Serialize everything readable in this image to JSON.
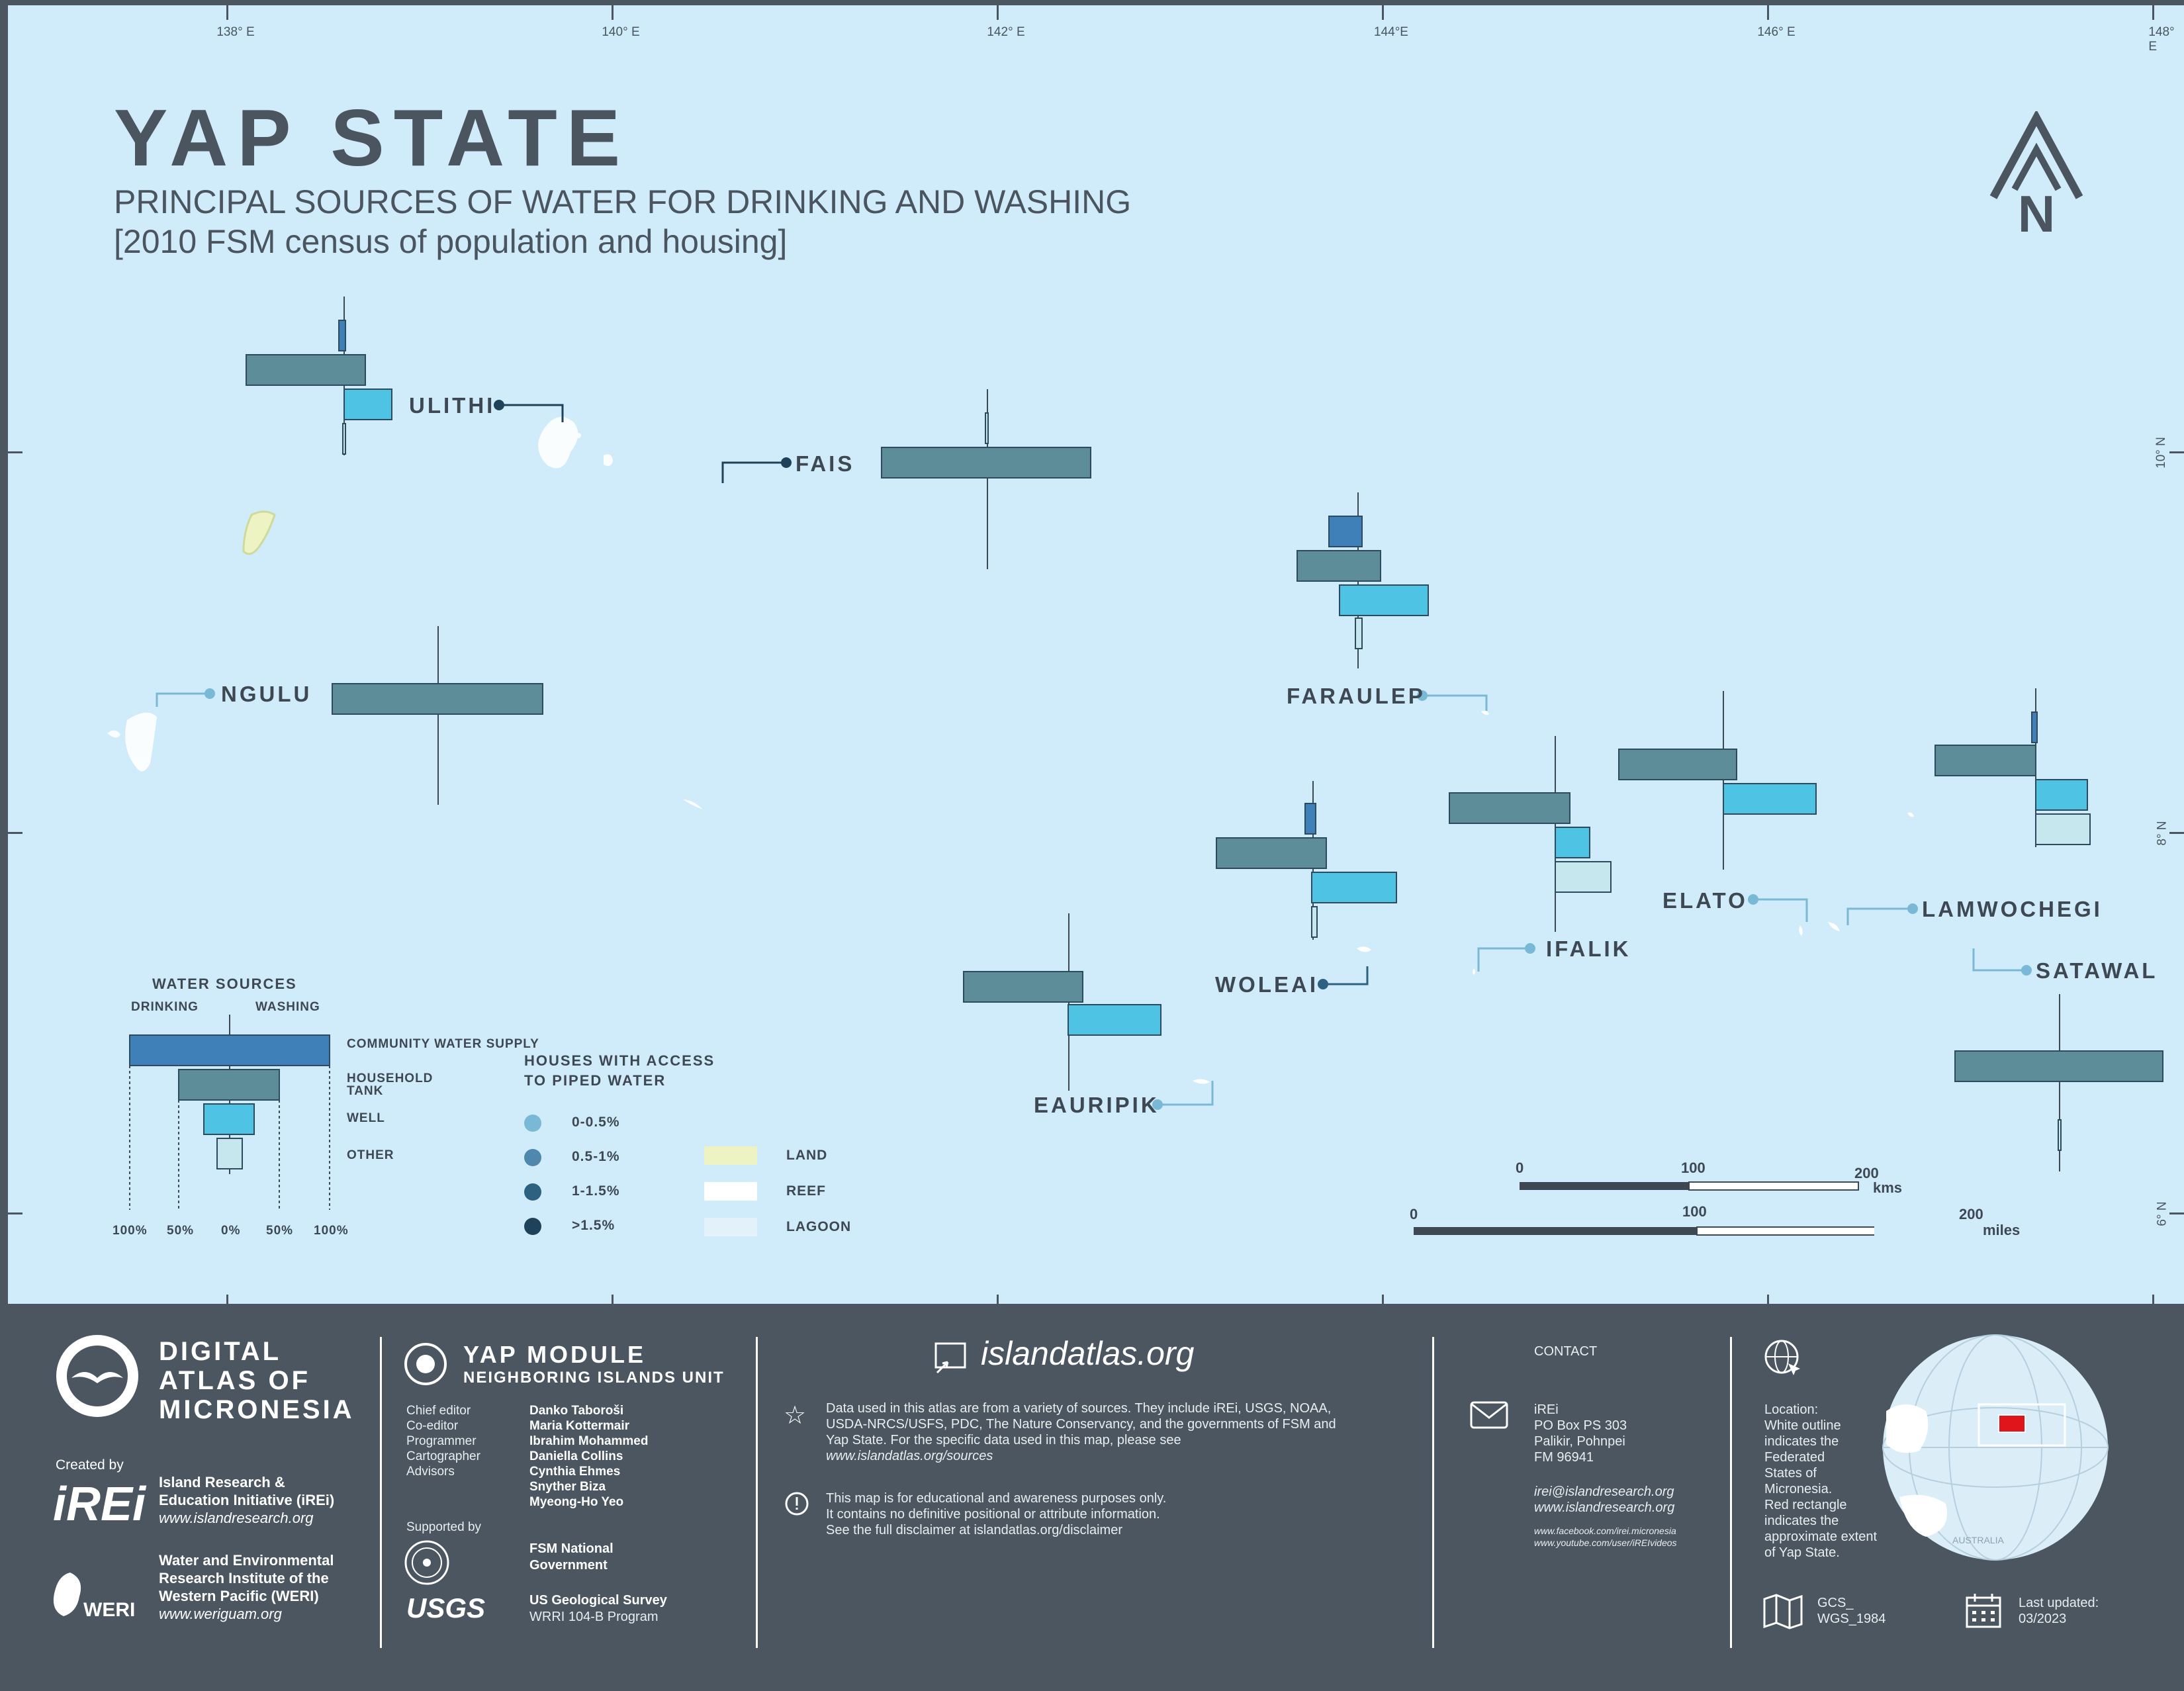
{
  "title": "YAP STATE",
  "subtitle": "PRINCIPAL SOURCES OF WATER FOR DRINKING AND WASHING",
  "subtitle2": "[2010 FSM census of population and housing]",
  "north_label": "N",
  "longitudes": [
    "138° E",
    "140° E",
    "142° E",
    "144°E",
    "146° E",
    "148° E"
  ],
  "latitudes": [
    "10° N",
    "8° N",
    "6° N"
  ],
  "islands": {
    "ulithi": "ULITHI",
    "fais": "FAIS",
    "ngulu": "NGULU",
    "faraulep": "FARAULEP",
    "woleai": "WOLEAI",
    "eauripik": "EAURIPIK",
    "ifalik": "IFALIK",
    "elato": "ELATO",
    "lamwochegi": "LAMWOCHEGI",
    "satawal": "SATAWAL"
  },
  "legend": {
    "water_sources": "WATER SOURCES",
    "drinking": "DRINKING",
    "washing": "WASHING",
    "community": "COMMUNITY WATER SUPPLY",
    "household": "HOUSEHOLD TANK",
    "well": "WELL",
    "other": "OTHER",
    "axis": [
      "100%",
      "50%",
      "0%",
      "50%",
      "100%"
    ],
    "piped_title_1": "HOUSES WITH ACCESS",
    "piped_title_2": "TO PIPED WATER",
    "piped": [
      "0-0.5%",
      "0.5-1%",
      "1-1.5%",
      ">1.5%"
    ],
    "land": "LAND",
    "reef": "REEF",
    "lagoon": "LAGOON"
  },
  "scale": {
    "km": [
      "0",
      "100",
      "200"
    ],
    "km_unit": "kms",
    "mi": [
      "0",
      "100",
      "200"
    ],
    "mi_unit": "miles"
  },
  "colors": {
    "community": "#3f80b8",
    "household": "#5c8d99",
    "well": "#4fc3e4",
    "other": "#c7e7ef",
    "ocean": "#d0ebf9",
    "footer": "#4b5661",
    "locator_box": "#e0141b"
  },
  "footer": {
    "atlas_1": "DIGITAL",
    "atlas_2": "ATLAS OF",
    "atlas_3": "MICRONESIA",
    "created_by": "Created by",
    "irei_logo": "iREi",
    "irei_name_1": "Island Research &",
    "irei_name_2": "Education Initiative (iREi)",
    "irei_url": "www.islandresearch.org",
    "weri_logo": "WERI",
    "weri_name_1": "Water and Environmental",
    "weri_name_2": "Research Institute of the",
    "weri_name_3": "Western Pacific (WERI)",
    "weri_url": "www.weriguam.org",
    "module_1": "YAP MODULE",
    "module_2": "NEIGHBORING ISLANDS UNIT",
    "roles": [
      "Chief editor",
      "Co-editor",
      "Programmer",
      "Cartographer",
      "Advisors"
    ],
    "people": [
      "Danko Taboroši",
      "Maria Kottermair",
      "Ibrahim Mohammed",
      "Daniella Collins",
      "Cynthia Ehmes",
      "Snyther Biza",
      "Myeong-Ho Yeo"
    ],
    "supported_by": "Supported by",
    "fsm_1": "FSM National",
    "fsm_2": "Government",
    "usgs_logo": "USGS",
    "usgs_1": "US Geological Survey",
    "usgs_2": "WRRI 104-B Program",
    "site": "islandatlas.org",
    "data_1": "Data used in this atlas are from a variety of sources. They include iREi, USGS, NOAA,",
    "data_2": "USDA-NRCS/USFS, PDC, The Nature Conservancy, and the governments of FSM and",
    "data_3": "Yap State. For the specific data used in this map, please see",
    "data_4": "www.islandatlas.org/sources",
    "disc_1": "This map is for educational and awareness purposes only.",
    "disc_2": "It contains no definitive positional or attribute information.",
    "disc_3": "See the full disclaimer at islandatlas.org/disclaimer",
    "contact": "CONTACT",
    "addr": [
      "iREi",
      "PO Box PS 303",
      "Palikir, Pohnpei",
      "FM 96941"
    ],
    "email": "irei@islandresearch.org",
    "web": "www.islandresearch.org",
    "fb": "www.facebook.com/irei.micronesia",
    "yt": "www.youtube.com/user/iREIvideos",
    "location": [
      "Location:",
      "White outline",
      "indicates the",
      "Federated",
      "States of",
      "Micronesia.",
      "Red rectangle",
      "indicates the",
      "approximate extent",
      "of Yap State."
    ],
    "gcs_1": "GCS_",
    "gcs_2": "WGS_1984",
    "updated_1": "Last updated:",
    "updated_2": "03/2023",
    "globe_label": "AUSTRALIA"
  }
}
